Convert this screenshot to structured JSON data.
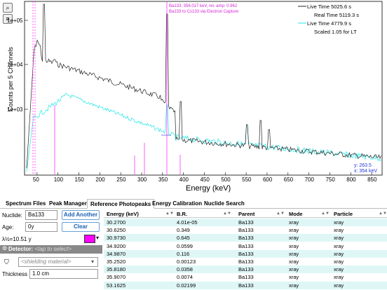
{
  "plot": {
    "ylabel": "Counts per 5 Channels",
    "xlabel": "Energy (keV)",
    "y_ticks": [
      "1e+05",
      "1e+04",
      "1e+03"
    ],
    "x_ticks": [
      "50",
      "100",
      "150",
      "200",
      "250",
      "300",
      "350",
      "400",
      "450",
      "500",
      "550",
      "600",
      "650",
      "700",
      "750",
      "800",
      "850"
    ],
    "annotation_line1": "Ba133, 356.017 keV, rel. amp: 0.962",
    "annotation_line2": "Ba133 to Cs133 via Electron Capture",
    "legend": {
      "live1": "Live Time 5025.6 s",
      "real1": "Real Time 5119.3 s",
      "live2": "Live Time 4779.9 s",
      "scaled": "Scaled 1.05 for LT"
    },
    "cursor_y": "y: 263.5",
    "cursor_x": "x: 354 keV",
    "colors": {
      "foreground": "#222222",
      "background_series": "#22e6e6",
      "reference": "#ff33ff"
    },
    "zoom_button_icon": "zoom-icon",
    "menu_button_icon": "menu-icon"
  },
  "tabs": [
    "Spectrum Files",
    "Peak Manager",
    "Reference Photopeaks",
    "Energy Calibration",
    "Nuclide Search"
  ],
  "left": {
    "nuclide_label": "Nuclide:",
    "nuclide_value": "Ba133",
    "add_another": "Add Another",
    "age_label": "Age:",
    "age_value": "0y",
    "clear": "Clear",
    "halflife": "λ½=10.51 y",
    "detector_label": "Detector:",
    "detector_placeholder": "<tap to select>",
    "shielding_placeholder": "<shielding material>",
    "thickness_label": "Thickness",
    "thickness_value": "1.0 cm"
  },
  "table": {
    "headers": [
      "Energy (keV)",
      "B.R.",
      "Parent",
      "Mode",
      "Particle"
    ],
    "rows": [
      [
        "30.2700",
        "4.01e-05",
        "Ba133",
        "xray",
        "xray"
      ],
      [
        "30.6250",
        "0.349",
        "Ba133",
        "xray",
        "xray"
      ],
      [
        "30.9730",
        "0.645",
        "Ba133",
        "xray",
        "xray"
      ],
      [
        "34.9200",
        "0.0599",
        "Ba133",
        "xray",
        "xray"
      ],
      [
        "34.9870",
        "0.116",
        "Ba133",
        "xray",
        "xray"
      ],
      [
        "35.2520",
        "0.00123",
        "Ba133",
        "xray",
        "xray"
      ],
      [
        "35.8180",
        "0.0358",
        "Ba133",
        "xray",
        "xray"
      ],
      [
        "35.9070",
        "0.0074",
        "Ba133",
        "xray",
        "xray"
      ],
      [
        "53.1625",
        "0.02199",
        "Ba133",
        "xray",
        "xray"
      ]
    ]
  }
}
